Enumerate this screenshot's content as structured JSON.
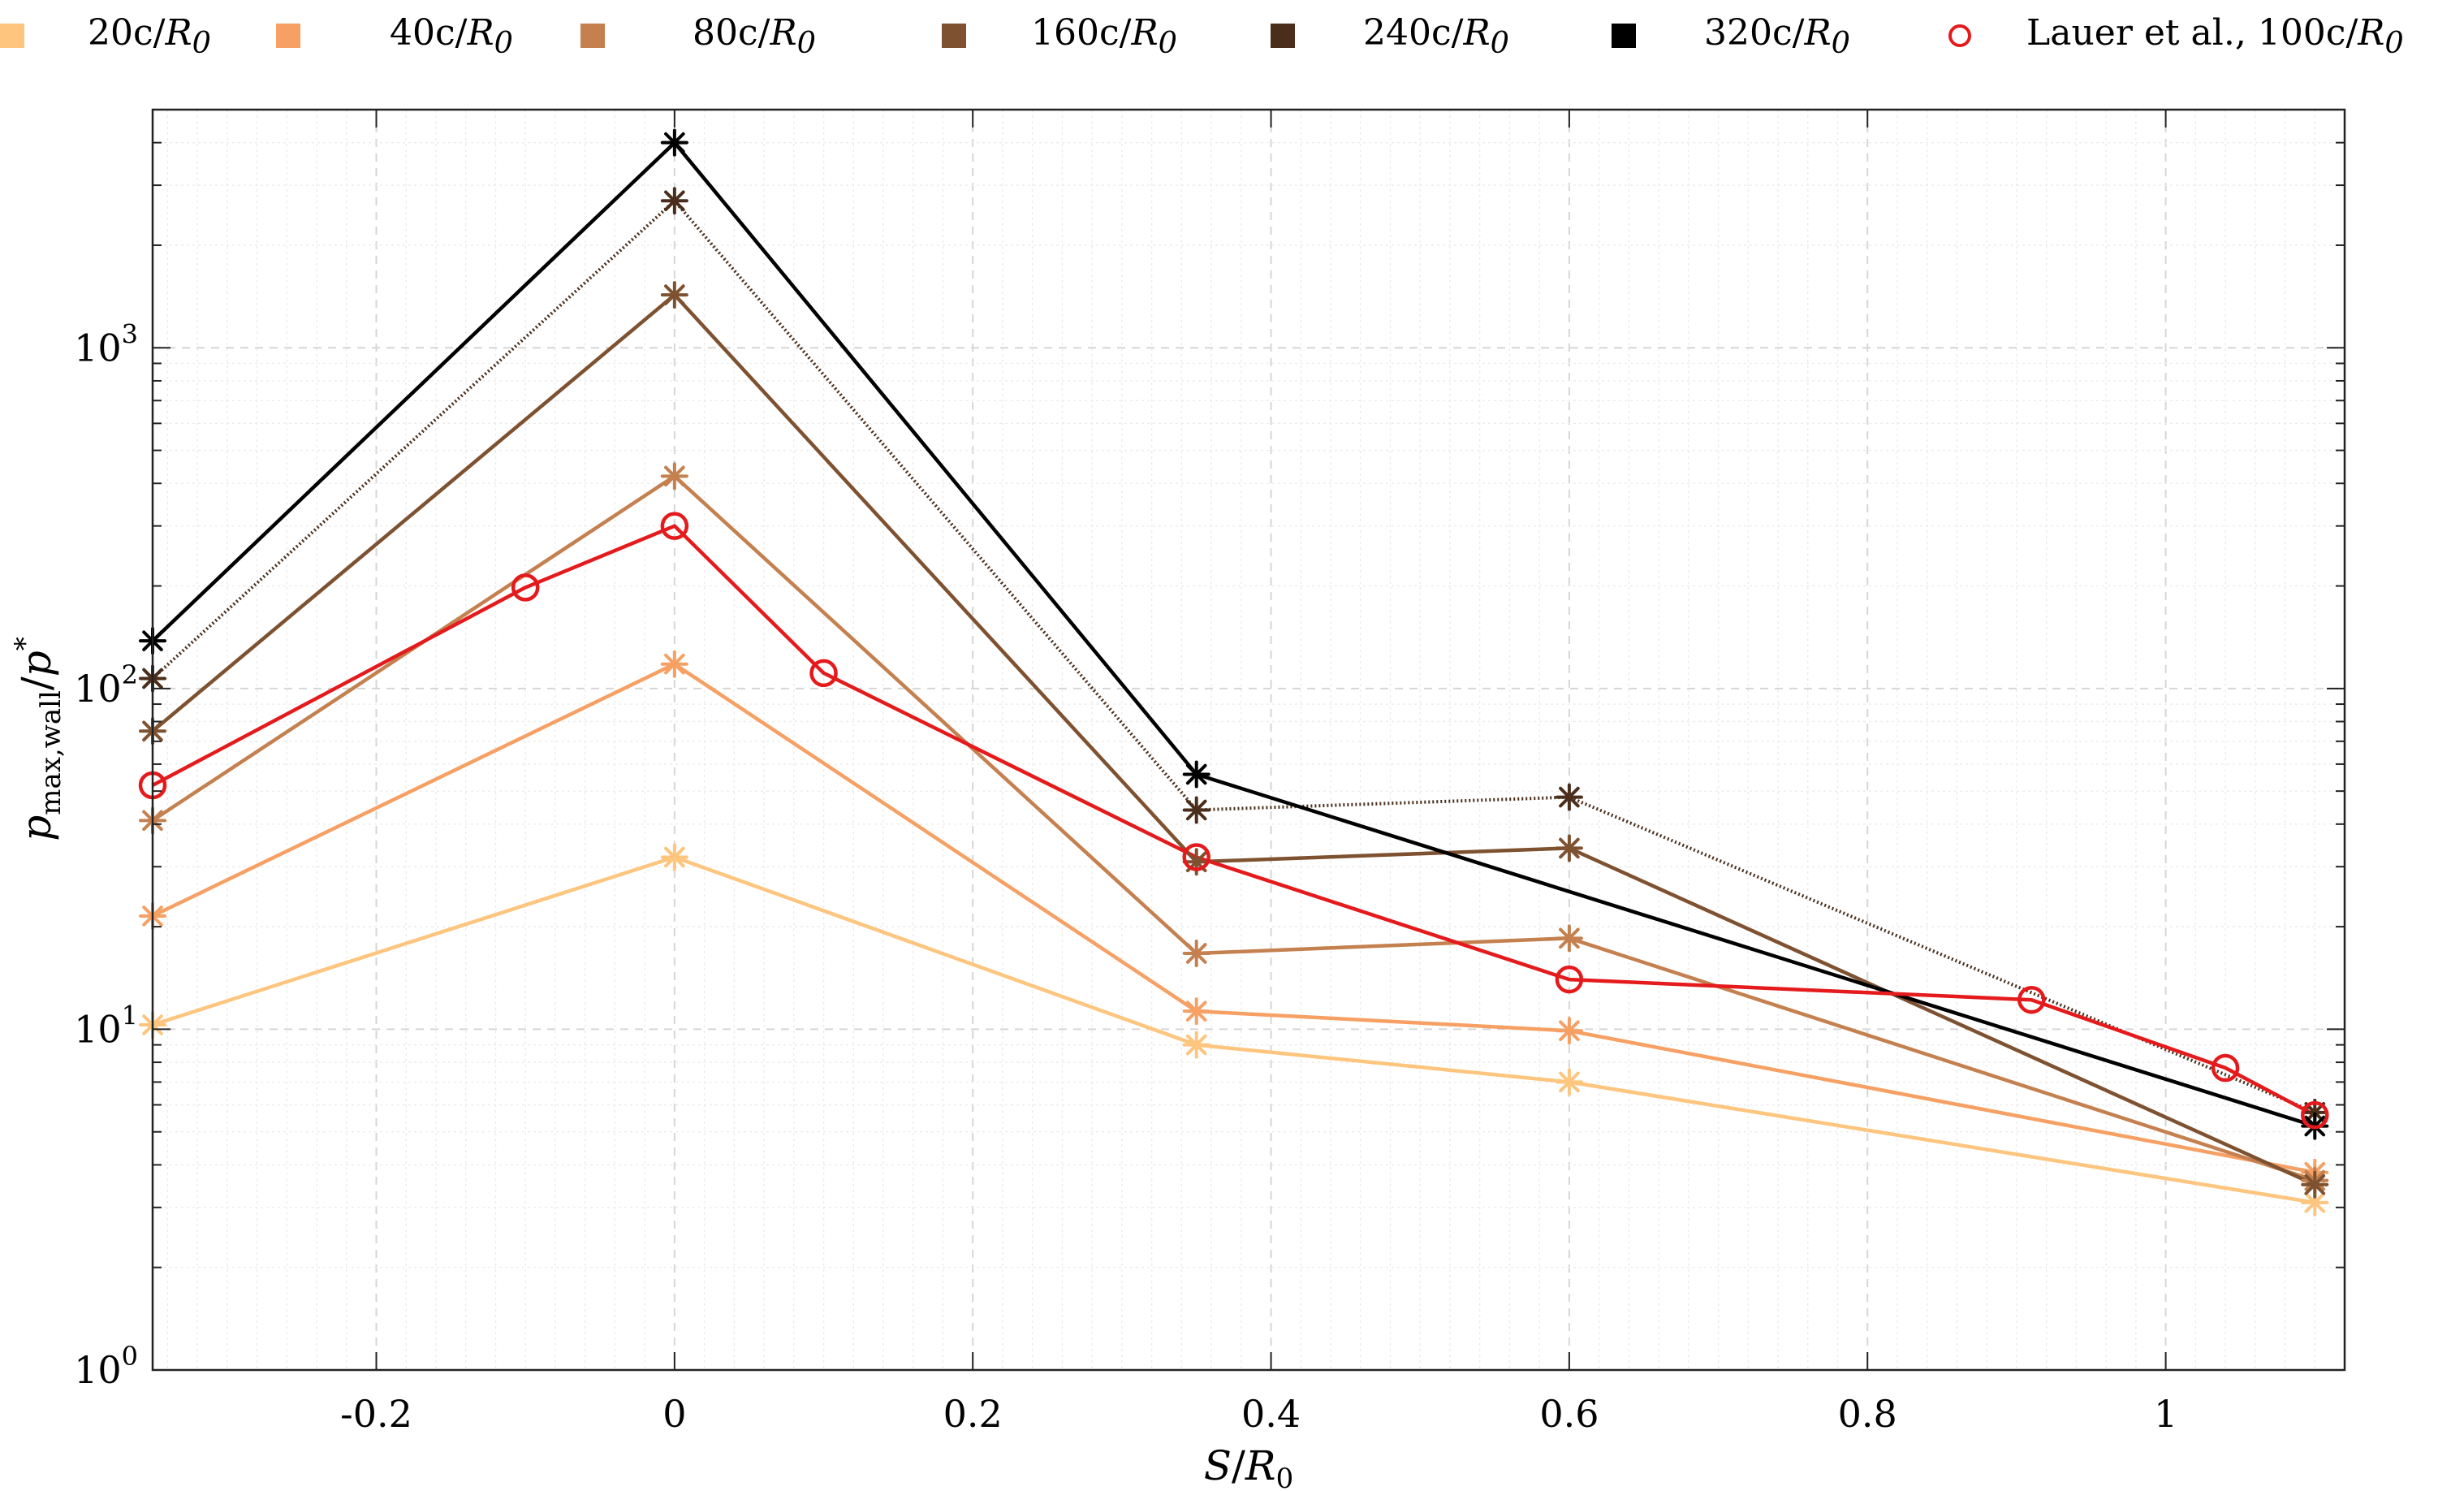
{
  "chart_data": {
    "type": "line",
    "title": "",
    "xlabel": "S/R0",
    "ylabel": "p_max,wall/p*",
    "xlim": [
      -0.35,
      1.12
    ],
    "ylim": [
      1,
      5000
    ],
    "yscale": "log",
    "grid": true,
    "legend_position": "top",
    "x_ticks": [
      -0.2,
      0,
      0.2,
      0.4,
      0.6,
      0.8,
      1
    ],
    "x_tick_labels": [
      "-0.2",
      "0",
      "0.2",
      "0.4",
      "0.6",
      "0.8",
      "1"
    ],
    "y_ticks": [
      1,
      10,
      100,
      1000
    ],
    "y_tick_labels": [
      "10^0",
      "10^1",
      "10^2",
      "10^3"
    ],
    "series": [
      {
        "name": "20c/R0",
        "legend_label": "20c/",
        "color": "#fdc57e",
        "marker": "asterisk",
        "line": "solid",
        "x": [
          -0.35,
          0,
          0.35,
          0.6,
          1.1
        ],
        "values": [
          10.3,
          32,
          9,
          7,
          3.1
        ]
      },
      {
        "name": "40c/R0",
        "legend_label": "40c/",
        "color": "#f6a064",
        "marker": "asterisk",
        "line": "solid",
        "x": [
          -0.35,
          0,
          0.35,
          0.6,
          1.1
        ],
        "values": [
          21.5,
          118,
          11.3,
          9.9,
          3.8
        ]
      },
      {
        "name": "80c/R0",
        "legend_label": "80c/",
        "color": "#c4804f",
        "marker": "asterisk",
        "line": "solid",
        "x": [
          -0.35,
          0,
          0.35,
          0.6,
          1.1
        ],
        "values": [
          41,
          420,
          16.7,
          18.5,
          3.6
        ]
      },
      {
        "name": "160c/R0",
        "legend_label": "160c/",
        "color": "#7e5231",
        "marker": "asterisk",
        "line": "solid",
        "x": [
          -0.35,
          0,
          0.35,
          0.6,
          1.1
        ],
        "values": [
          75,
          1430,
          31,
          34,
          3.5
        ]
      },
      {
        "name": "240c/R0",
        "legend_label": "240c/",
        "color": "#4a2e1b",
        "marker": "asterisk",
        "line": "dotted",
        "x": [
          -0.35,
          0,
          0.35,
          0.6,
          1.1
        ],
        "values": [
          107,
          2700,
          44,
          48,
          5.7
        ]
      },
      {
        "name": "320c/R0",
        "legend_label": "320c/",
        "color": "#000000",
        "marker": "asterisk",
        "line": "solid",
        "x": [
          -0.35,
          0,
          0.35,
          1.1
        ],
        "values": [
          138,
          4000,
          56,
          5.2
        ]
      },
      {
        "name": "Lauer et al., 100c/R0",
        "legend_label": "Lauer et al., 100c/",
        "color": "#e41a1c",
        "marker": "circle",
        "line": "solid",
        "x": [
          -0.35,
          -0.1,
          0,
          0.1,
          0.35,
          0.6,
          0.91,
          1.04,
          1.1
        ],
        "values": [
          52,
          198,
          300,
          111,
          32,
          14,
          12.2,
          7.7,
          5.6
        ]
      }
    ]
  }
}
